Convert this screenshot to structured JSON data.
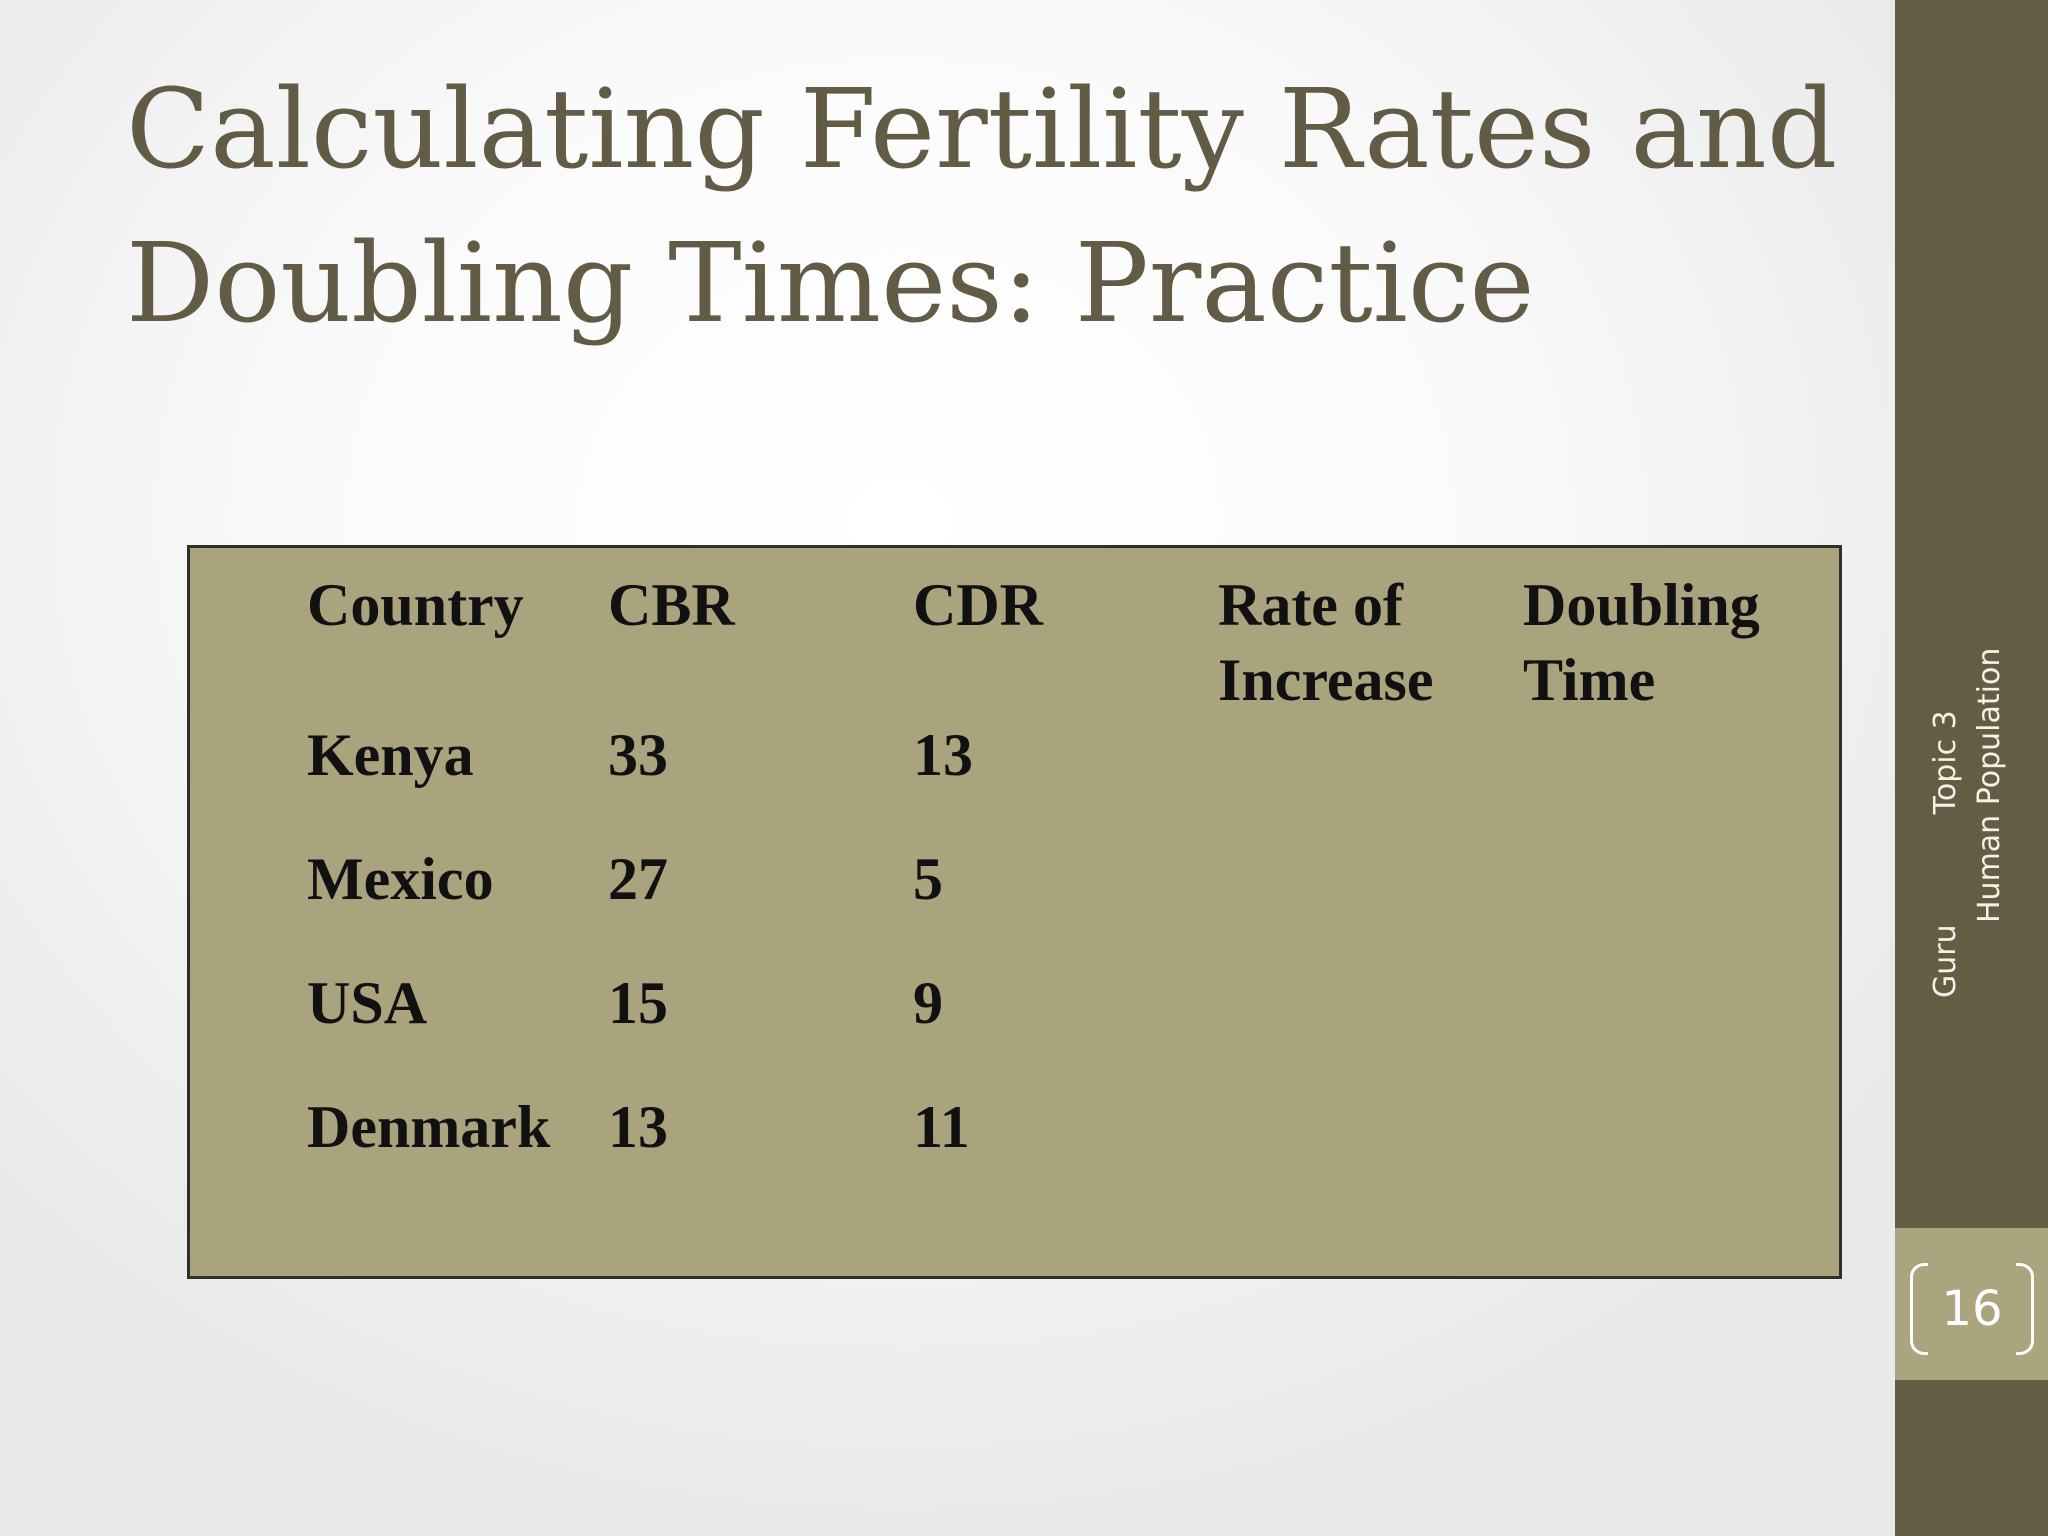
{
  "slide": {
    "title_line1": "Calculating Fertility Rates and",
    "title_line2": "Doubling Times: Practice",
    "page_number": "16"
  },
  "table": {
    "headers": {
      "country": "Country",
      "cbr": "CBR",
      "cdr": "CDR",
      "rate_line1": "Rate of",
      "rate_line2": "Increase",
      "doubling_line1": "Doubling",
      "doubling_line2": "Time"
    },
    "rows": [
      {
        "country": "Kenya",
        "cbr": "33",
        "cdr": "13",
        "rate": "",
        "doubling": ""
      },
      {
        "country": "Mexico",
        "cbr": "27",
        "cdr": "5",
        "rate": "",
        "doubling": ""
      },
      {
        "country": "USA",
        "cbr": "15",
        "cdr": "9",
        "rate": "",
        "doubling": ""
      },
      {
        "country": "Denmark",
        "cbr": "13",
        "cdr": "11",
        "rate": "",
        "doubling": ""
      }
    ]
  },
  "footer": {
    "line1_part1": "Guru",
    "line1_part2": "Topic 3",
    "line2": "Human Population"
  },
  "colors": {
    "title": "#625b45",
    "sidebar": "#655c44",
    "table_fill": "#a9a47d",
    "page_panel": "#aaa57f"
  }
}
